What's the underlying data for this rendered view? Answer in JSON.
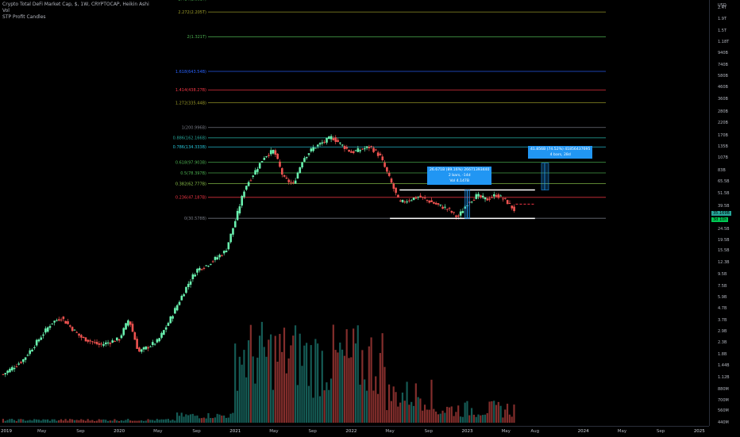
{
  "legend": {
    "title": "Crypto Total DeFi Market Cap, $, 1W, CRYPTOCAP, Heikin Ashi",
    "line2": "Vol",
    "line3": "STP Profit Candles"
  },
  "price_axis": {
    "currency": "USD",
    "labels": [
      "2.4T",
      "1.9T",
      "1.5T",
      "1.18T",
      "940B",
      "740B",
      "580B",
      "460B",
      "360B",
      "280B",
      "220B",
      "170B",
      "135B",
      "107B",
      "83B",
      "65.5B",
      "51.5B",
      "39.5B",
      "24.5B",
      "19.5B",
      "15.5B",
      "12.3B",
      "9.5B",
      "7.5B",
      "5.9B",
      "4.7B",
      "3.7B",
      "2.9B",
      "2.3B",
      "1.8B",
      "1.44B",
      "1.12B",
      "880M",
      "700M",
      "560M",
      "440M"
    ],
    "last_price": "35.169B",
    "last_price_sub": "35.169B",
    "countdown": "3d 10h"
  },
  "time_axis": {
    "labels": [
      "2019",
      "May",
      "Sep",
      "2020",
      "May",
      "Sep",
      "2021",
      "May",
      "Sep",
      "2022",
      "May",
      "Sep",
      "2023",
      "May",
      "Aug",
      "2024",
      "May",
      "Sep",
      "2025"
    ]
  },
  "fib_levels": [
    {
      "label": "2.414(2.881T)",
      "color": "#4caf50"
    },
    {
      "label": "2.272(2.205T)",
      "color": "#9e9e2a"
    },
    {
      "label": "2(1.321T)",
      "color": "#4caf50"
    },
    {
      "label": "1.618(643.54B)",
      "color": "#2962ff"
    },
    {
      "label": "1.414(438.27B)",
      "color": "#f23645"
    },
    {
      "label": "1.272(335.44B)",
      "color": "#9c9c2a"
    },
    {
      "label": "1(200.996B)",
      "color": "#787b86"
    },
    {
      "label": "0.886(162.166B)",
      "color": "#26a69a"
    },
    {
      "label": "0.786(134.333B)",
      "color": "#26c6da"
    },
    {
      "label": "0.618(97.903B)",
      "color": "#4caf50"
    },
    {
      "label": "0.5(78.397B)",
      "color": "#4caf50"
    },
    {
      "label": "0.382(62.777B)",
      "color": "#8bc34a"
    },
    {
      "label": "0.236(47.187B)",
      "color": "#f23645"
    },
    {
      "label": "0(30.578B)",
      "color": "#787b86"
    }
  ],
  "measure_callouts": [
    {
      "line1": "26.671B (89.16%) 26671393440",
      "line2": "2 bars, -14d",
      "line3": "Vol 4.147B"
    },
    {
      "line1": "41.856B (74.52%) 41856437695",
      "line2": "4 bars, 28d"
    }
  ],
  "colors": {
    "up": "#26a69a",
    "down": "#ef5350",
    "up_bright": "#69f0ae",
    "vol_up": "#26a69a",
    "vol_down": "#ef5350",
    "callout": "#2196f3",
    "background": "#000000"
  },
  "chart_data": {
    "type": "candlestick",
    "x_range": [
      "2019-01",
      "2025-02"
    ],
    "y_scale": "log",
    "y_range_usd": [
      440000000,
      2400000000000
    ],
    "series": [
      {
        "name": "Vol",
        "type": "volume"
      }
    ],
    "price_path_usd_b": [
      [
        "2019-01",
        1.2
      ],
      [
        "2019-03",
        1.6
      ],
      [
        "2019-06",
        3.5
      ],
      [
        "2019-07",
        3.9
      ],
      [
        "2019-09",
        2.6
      ],
      [
        "2019-11",
        2.2
      ],
      [
        "2020-01",
        2.5
      ],
      [
        "2020-02",
        3.8
      ],
      [
        "2020-03",
        1.9
      ],
      [
        "2020-05",
        2.4
      ],
      [
        "2020-06",
        3.4
      ],
      [
        "2020-08",
        7.5
      ],
      [
        "2020-09",
        10.5
      ],
      [
        "2020-10",
        11.5
      ],
      [
        "2020-12",
        15.5
      ],
      [
        "2021-01",
        29
      ],
      [
        "2021-02",
        58
      ],
      [
        "2021-04",
        110
      ],
      [
        "2021-05",
        125
      ],
      [
        "2021-06",
        70
      ],
      [
        "2021-07",
        62
      ],
      [
        "2021-08",
        105
      ],
      [
        "2021-09",
        130
      ],
      [
        "2021-11",
        165
      ],
      [
        "2021-12",
        140
      ],
      [
        "2022-01",
        120
      ],
      [
        "2022-03",
        135
      ],
      [
        "2022-04",
        110
      ],
      [
        "2022-06",
        42
      ],
      [
        "2022-08",
        48
      ],
      [
        "2022-10",
        40
      ],
      [
        "2022-11",
        37
      ],
      [
        "2022-12",
        31
      ],
      [
        "2023-01",
        42
      ],
      [
        "2023-02",
        49
      ],
      [
        "2023-03",
        45
      ],
      [
        "2023-04",
        50
      ],
      [
        "2023-05",
        44
      ],
      [
        "2023-06",
        35.169
      ]
    ]
  }
}
